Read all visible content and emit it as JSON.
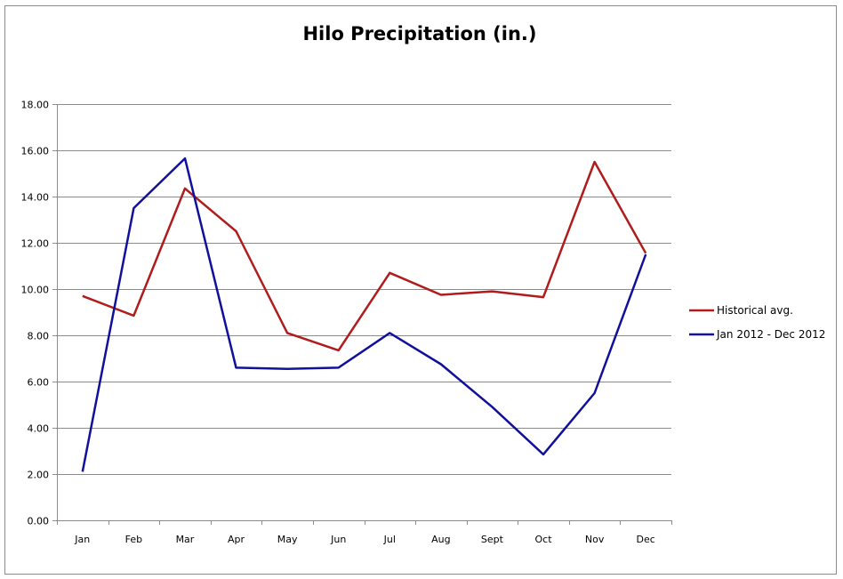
{
  "chart_data": {
    "type": "line",
    "title": "Hilo Precipitation (in.)",
    "xlabel": "",
    "ylabel": "",
    "categories": [
      "Jan",
      "Feb",
      "Mar",
      "Apr",
      "May",
      "Jun",
      "Jul",
      "Aug",
      "Sept",
      "Oct",
      "Nov",
      "Dec"
    ],
    "yticks": [
      "0.00",
      "2.00",
      "4.00",
      "6.00",
      "8.00",
      "10.00",
      "12.00",
      "14.00",
      "16.00",
      "18.00"
    ],
    "ylim": [
      0,
      18
    ],
    "grid": true,
    "legend_position": "right",
    "series": [
      {
        "name": "Historical avg.",
        "color": "#b01c1c",
        "values": [
          9.7,
          8.85,
          14.35,
          12.5,
          8.1,
          7.35,
          10.7,
          9.75,
          9.9,
          9.65,
          15.5,
          11.55
        ]
      },
      {
        "name": "Jan 2012 - Dec 2012",
        "color": "#10109c",
        "values": [
          2.1,
          13.5,
          15.65,
          6.6,
          6.55,
          6.6,
          8.1,
          6.75,
          4.9,
          2.85,
          5.5,
          11.5
        ]
      }
    ]
  }
}
